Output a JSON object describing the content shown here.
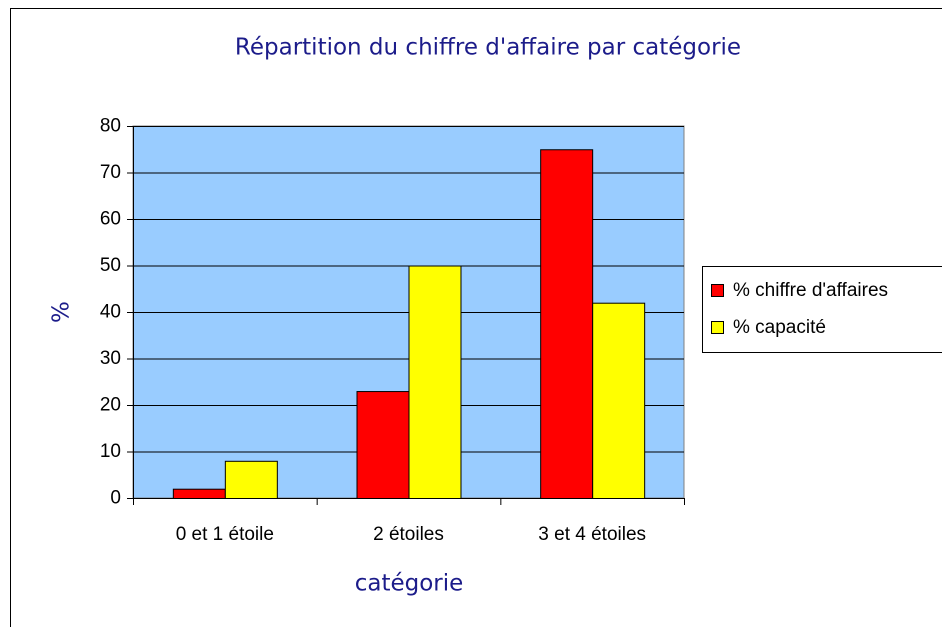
{
  "chart_data": {
    "type": "bar",
    "title": "Répartition du chiffre d'affaire par catégorie",
    "x_label": "catégorie",
    "y_label": "%",
    "categories": [
      "0 et 1 étoile",
      "2 étoiles",
      "3 et 4 étoiles"
    ],
    "series": [
      {
        "name": "% chiffre d'affaires",
        "color": "#ff0000",
        "values": [
          2,
          23,
          75
        ]
      },
      {
        "name": "% capacité",
        "color": "#ffff00",
        "values": [
          8,
          50,
          42
        ]
      }
    ],
    "ylim": [
      0,
      80
    ],
    "yticks": [
      0,
      10,
      20,
      30,
      40,
      50,
      60,
      70,
      80
    ],
    "grid": true,
    "legend": "right",
    "plot_background": "#99ccff"
  }
}
